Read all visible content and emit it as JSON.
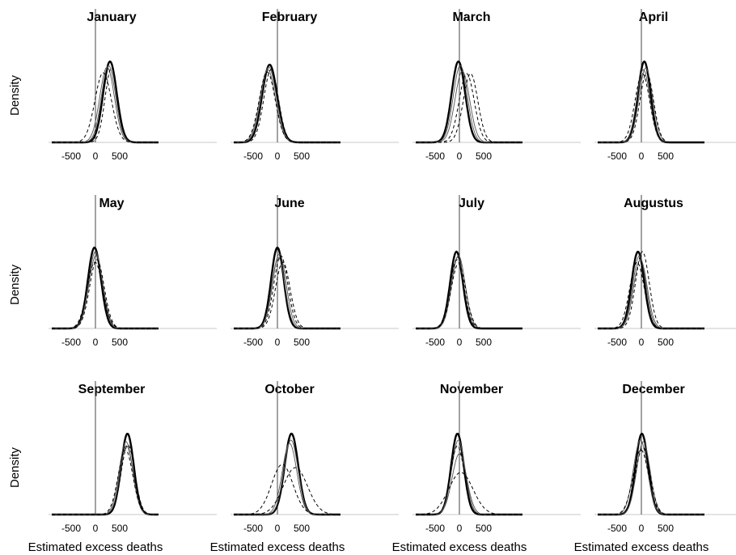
{
  "chart_data": {
    "type": "line",
    "xlabel": "Estimated excess deaths",
    "ylabel": "Density",
    "x_ticks": [
      "-500",
      "0",
      "500"
    ],
    "x_tick_values": [
      -500,
      0,
      500
    ],
    "xlim": [
      -900,
      1300
    ],
    "panels": [
      {
        "title": "January",
        "curves": [
          {
            "style": "solid-thick",
            "mean": 300,
            "sd": 140,
            "peak": 1.0
          },
          {
            "style": "solid-thin",
            "mean": 240,
            "sd": 150,
            "peak": 0.93
          },
          {
            "style": "solid-thin",
            "mean": 270,
            "sd": 145,
            "peak": 0.95
          },
          {
            "style": "dashed",
            "mean": 160,
            "sd": 170,
            "peak": 0.86
          },
          {
            "style": "dashed",
            "mean": 330,
            "sd": 130,
            "peak": 0.92
          }
        ]
      },
      {
        "title": "February",
        "curves": [
          {
            "style": "solid-thick",
            "mean": -160,
            "sd": 155,
            "peak": 0.96
          },
          {
            "style": "solid-thin",
            "mean": -200,
            "sd": 160,
            "peak": 0.9
          },
          {
            "style": "solid-thin",
            "mean": -180,
            "sd": 158,
            "peak": 0.93
          },
          {
            "style": "dashed",
            "mean": -130,
            "sd": 150,
            "peak": 0.9
          },
          {
            "style": "dashed",
            "mean": -210,
            "sd": 165,
            "peak": 0.87
          }
        ]
      },
      {
        "title": "March",
        "curves": [
          {
            "style": "solid-thick",
            "mean": -20,
            "sd": 140,
            "peak": 1.0
          },
          {
            "style": "solid-thin",
            "mean": 20,
            "sd": 145,
            "peak": 0.95
          },
          {
            "style": "solid-thin",
            "mean": 60,
            "sd": 150,
            "peak": 0.88
          },
          {
            "style": "dashed",
            "mean": 150,
            "sd": 155,
            "peak": 0.85
          },
          {
            "style": "dashed",
            "mean": 230,
            "sd": 150,
            "peak": 0.85
          }
        ]
      },
      {
        "title": "April",
        "curves": [
          {
            "style": "solid-thick",
            "mean": 60,
            "sd": 130,
            "peak": 1.0
          },
          {
            "style": "solid-thin",
            "mean": 90,
            "sd": 140,
            "peak": 0.92
          },
          {
            "style": "solid-thin",
            "mean": 40,
            "sd": 135,
            "peak": 0.9
          },
          {
            "style": "dashed",
            "mean": 110,
            "sd": 140,
            "peak": 0.86
          },
          {
            "style": "dashed",
            "mean": 20,
            "sd": 150,
            "peak": 0.85
          }
        ]
      },
      {
        "title": "May",
        "curves": [
          {
            "style": "solid-thick",
            "mean": -20,
            "sd": 135,
            "peak": 1.0
          },
          {
            "style": "solid-thin",
            "mean": 0,
            "sd": 140,
            "peak": 0.95
          },
          {
            "style": "solid-thin",
            "mean": 10,
            "sd": 145,
            "peak": 0.9
          },
          {
            "style": "dashed",
            "mean": 30,
            "sd": 150,
            "peak": 0.85
          },
          {
            "style": "dashed",
            "mean": -10,
            "sd": 160,
            "peak": 0.82
          }
        ]
      },
      {
        "title": "June",
        "curves": [
          {
            "style": "solid-thick",
            "mean": 0,
            "sd": 130,
            "peak": 1.0
          },
          {
            "style": "solid-thin",
            "mean": 40,
            "sd": 140,
            "peak": 0.92
          },
          {
            "style": "solid-thin",
            "mean": 20,
            "sd": 135,
            "peak": 0.88
          },
          {
            "style": "dashed",
            "mean": 70,
            "sd": 145,
            "peak": 0.9
          },
          {
            "style": "dashed",
            "mean": 110,
            "sd": 150,
            "peak": 0.82
          }
        ]
      },
      {
        "title": "July",
        "curves": [
          {
            "style": "solid-thick",
            "mean": -60,
            "sd": 130,
            "peak": 0.95
          },
          {
            "style": "solid-thin",
            "mean": -40,
            "sd": 135,
            "peak": 0.88
          },
          {
            "style": "solid-thin",
            "mean": -20,
            "sd": 140,
            "peak": 0.9
          },
          {
            "style": "dashed",
            "mean": -50,
            "sd": 145,
            "peak": 0.85
          },
          {
            "style": "dashed",
            "mean": -20,
            "sd": 150,
            "peak": 0.8
          }
        ]
      },
      {
        "title": "Augustus",
        "curves": [
          {
            "style": "solid-thick",
            "mean": -70,
            "sd": 130,
            "peak": 0.95
          },
          {
            "style": "solid-thin",
            "mean": -40,
            "sd": 135,
            "peak": 0.9
          },
          {
            "style": "solid-thin",
            "mean": -20,
            "sd": 140,
            "peak": 0.85
          },
          {
            "style": "dashed",
            "mean": 20,
            "sd": 140,
            "peak": 0.95
          },
          {
            "style": "dashed",
            "mean": -90,
            "sd": 150,
            "peak": 0.82
          }
        ]
      },
      {
        "title": "September",
        "curves": [
          {
            "style": "solid-thick",
            "mean": 660,
            "sd": 130,
            "peak": 1.0
          },
          {
            "style": "solid-thin",
            "mean": 630,
            "sd": 140,
            "peak": 0.9
          },
          {
            "style": "solid-thin",
            "mean": 640,
            "sd": 135,
            "peak": 0.85
          },
          {
            "style": "dashed",
            "mean": 670,
            "sd": 140,
            "peak": 0.86
          },
          {
            "style": "dashed",
            "mean": 620,
            "sd": 150,
            "peak": 0.8
          }
        ]
      },
      {
        "title": "October",
        "curves": [
          {
            "style": "solid-thick",
            "mean": 290,
            "sd": 140,
            "peak": 1.0
          },
          {
            "style": "solid-thin",
            "mean": 250,
            "sd": 150,
            "peak": 0.88
          },
          {
            "style": "solid-thin",
            "mean": 280,
            "sd": 145,
            "peak": 0.92
          },
          {
            "style": "dashed",
            "mean": 100,
            "sd": 220,
            "peak": 0.62
          },
          {
            "style": "dashed",
            "mean": 370,
            "sd": 250,
            "peak": 0.58
          }
        ]
      },
      {
        "title": "November",
        "curves": [
          {
            "style": "solid-thick",
            "mean": -40,
            "sd": 130,
            "peak": 1.0
          },
          {
            "style": "solid-thin",
            "mean": -20,
            "sd": 140,
            "peak": 0.92
          },
          {
            "style": "solid-thin",
            "mean": 0,
            "sd": 150,
            "peak": 0.75
          },
          {
            "style": "dashed",
            "mean": -40,
            "sd": 140,
            "peak": 0.85
          },
          {
            "style": "dashed",
            "mean": 30,
            "sd": 250,
            "peak": 0.52
          }
        ]
      },
      {
        "title": "December",
        "curves": [
          {
            "style": "solid-thick",
            "mean": 10,
            "sd": 130,
            "peak": 1.0
          },
          {
            "style": "solid-thin",
            "mean": 40,
            "sd": 140,
            "peak": 0.9
          },
          {
            "style": "solid-thin",
            "mean": -20,
            "sd": 145,
            "peak": 0.92
          },
          {
            "style": "dashed",
            "mean": 30,
            "sd": 150,
            "peak": 0.83
          },
          {
            "style": "dashed",
            "mean": -10,
            "sd": 160,
            "peak": 0.8
          }
        ]
      }
    ]
  }
}
